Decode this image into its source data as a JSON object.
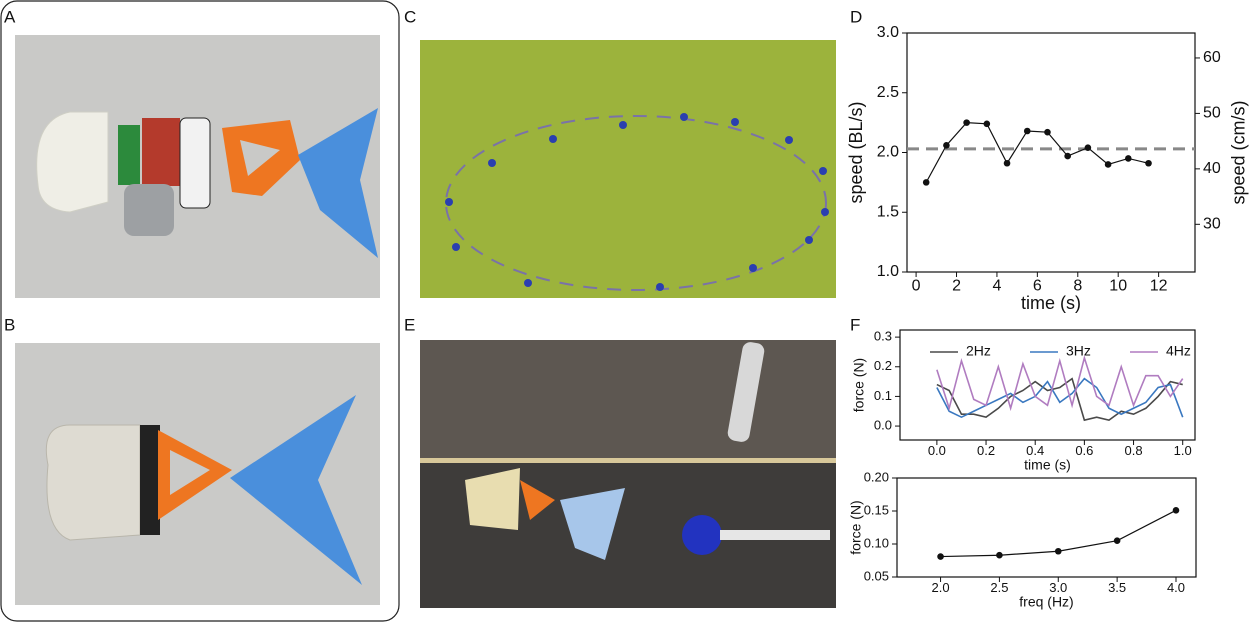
{
  "panel_labels": [
    "A",
    "B",
    "C",
    "D",
    "E",
    "F"
  ],
  "chart_data": [
    {
      "type": "line",
      "markers": true,
      "color": "#111111",
      "x": [
        0.5,
        1.5,
        2.5,
        3.5,
        4.5,
        5.5,
        6.5,
        7.5,
        8.5,
        9.5,
        10.5,
        11.5
      ],
      "values": [
        1.75,
        2.06,
        2.25,
        2.24,
        1.91,
        2.18,
        2.17,
        1.97,
        2.04,
        1.9,
        1.95,
        1.91
      ],
      "hline": 2.03,
      "hline_color": "#888888",
      "xlim": [
        -0.45,
        13.8
      ],
      "xticks": [
        0,
        2,
        4,
        6,
        8,
        10,
        12
      ],
      "ylim": [
        1.0,
        3.0
      ],
      "yticks": [
        {
          "value": 1.0,
          "label": "1.0"
        },
        {
          "value": 1.5,
          "label": "1.5"
        },
        {
          "value": 2.0,
          "label": "2.0"
        },
        {
          "value": 2.5,
          "label": "2.5"
        },
        {
          "value": 3.0,
          "label": "3.0"
        }
      ],
      "y2lim": [
        21.4,
        64.5
      ],
      "y2ticks": [
        30,
        40,
        50,
        60
      ],
      "xlabel": "time (s)",
      "ylabel": "speed (BL/s)",
      "y2label": "speed (cm/s)"
    },
    {
      "type": "line",
      "markers": false,
      "x": [
        0,
        0.05,
        0.1,
        0.15,
        0.2,
        0.25,
        0.3,
        0.35,
        0.4,
        0.45,
        0.5,
        0.55,
        0.6,
        0.65,
        0.7,
        0.75,
        0.8,
        0.85,
        0.9,
        0.95,
        1.0
      ],
      "series": [
        {
          "name": "2Hz",
          "color": "#4a4a4a",
          "values": [
            0.14,
            0.12,
            0.04,
            0.04,
            0.03,
            0.06,
            0.1,
            0.12,
            0.15,
            0.12,
            0.13,
            0.16,
            0.02,
            0.03,
            0.02,
            0.05,
            0.04,
            0.06,
            0.1,
            0.15,
            0.14
          ]
        },
        {
          "name": "3Hz",
          "color": "#3a78c0",
          "values": [
            0.13,
            0.05,
            0.03,
            0.05,
            0.07,
            0.09,
            0.11,
            0.08,
            0.1,
            0.15,
            0.08,
            0.11,
            0.16,
            0.13,
            0.06,
            0.04,
            0.06,
            0.08,
            0.13,
            0.14,
            0.03
          ]
        },
        {
          "name": "4Hz",
          "color": "#b07cc0",
          "values": [
            0.19,
            0.06,
            0.22,
            0.09,
            0.07,
            0.2,
            0.06,
            0.21,
            0.1,
            0.07,
            0.22,
            0.07,
            0.23,
            0.1,
            0.07,
            0.2,
            0.07,
            0.17,
            0.17,
            0.1,
            0.16
          ]
        }
      ],
      "xlim": [
        -0.15,
        1.05
      ],
      "xticks": [
        {
          "value": 0,
          "label": "0.0"
        },
        {
          "value": 0.2,
          "label": "0.2"
        },
        {
          "value": 0.4,
          "label": "0.4"
        },
        {
          "value": 0.6,
          "label": "0.6"
        },
        {
          "value": 0.8,
          "label": "0.8"
        },
        {
          "value": 1.0,
          "label": "1.0"
        }
      ],
      "ylim": [
        -0.047,
        0.324
      ],
      "yticks": [
        {
          "value": 0,
          "label": "0.0"
        },
        0.1,
        0.2,
        0.3
      ],
      "xlabel": "time (s)",
      "ylabel": "force (N)"
    },
    {
      "type": "line",
      "markers": true,
      "color": "#111111",
      "x": [
        2.0,
        2.5,
        3.0,
        3.5,
        4.0
      ],
      "values": [
        0.081,
        0.083,
        0.089,
        0.105,
        0.151
      ],
      "xlim": [
        1.63,
        4.17
      ],
      "xticks": [
        {
          "value": 2,
          "label": "2.0"
        },
        2.5,
        {
          "value": 3,
          "label": "3.0"
        },
        3.5,
        {
          "value": 4,
          "label": "4.0"
        }
      ],
      "ylim": [
        0.05,
        0.2
      ],
      "yticks": [
        0.05,
        {
          "value": 0.1,
          "label": "0.10"
        },
        0.15,
        {
          "value": 0.2,
          "label": "0.20"
        }
      ],
      "xlabel": "freq (Hz)",
      "ylabel": "force (N)"
    }
  ]
}
